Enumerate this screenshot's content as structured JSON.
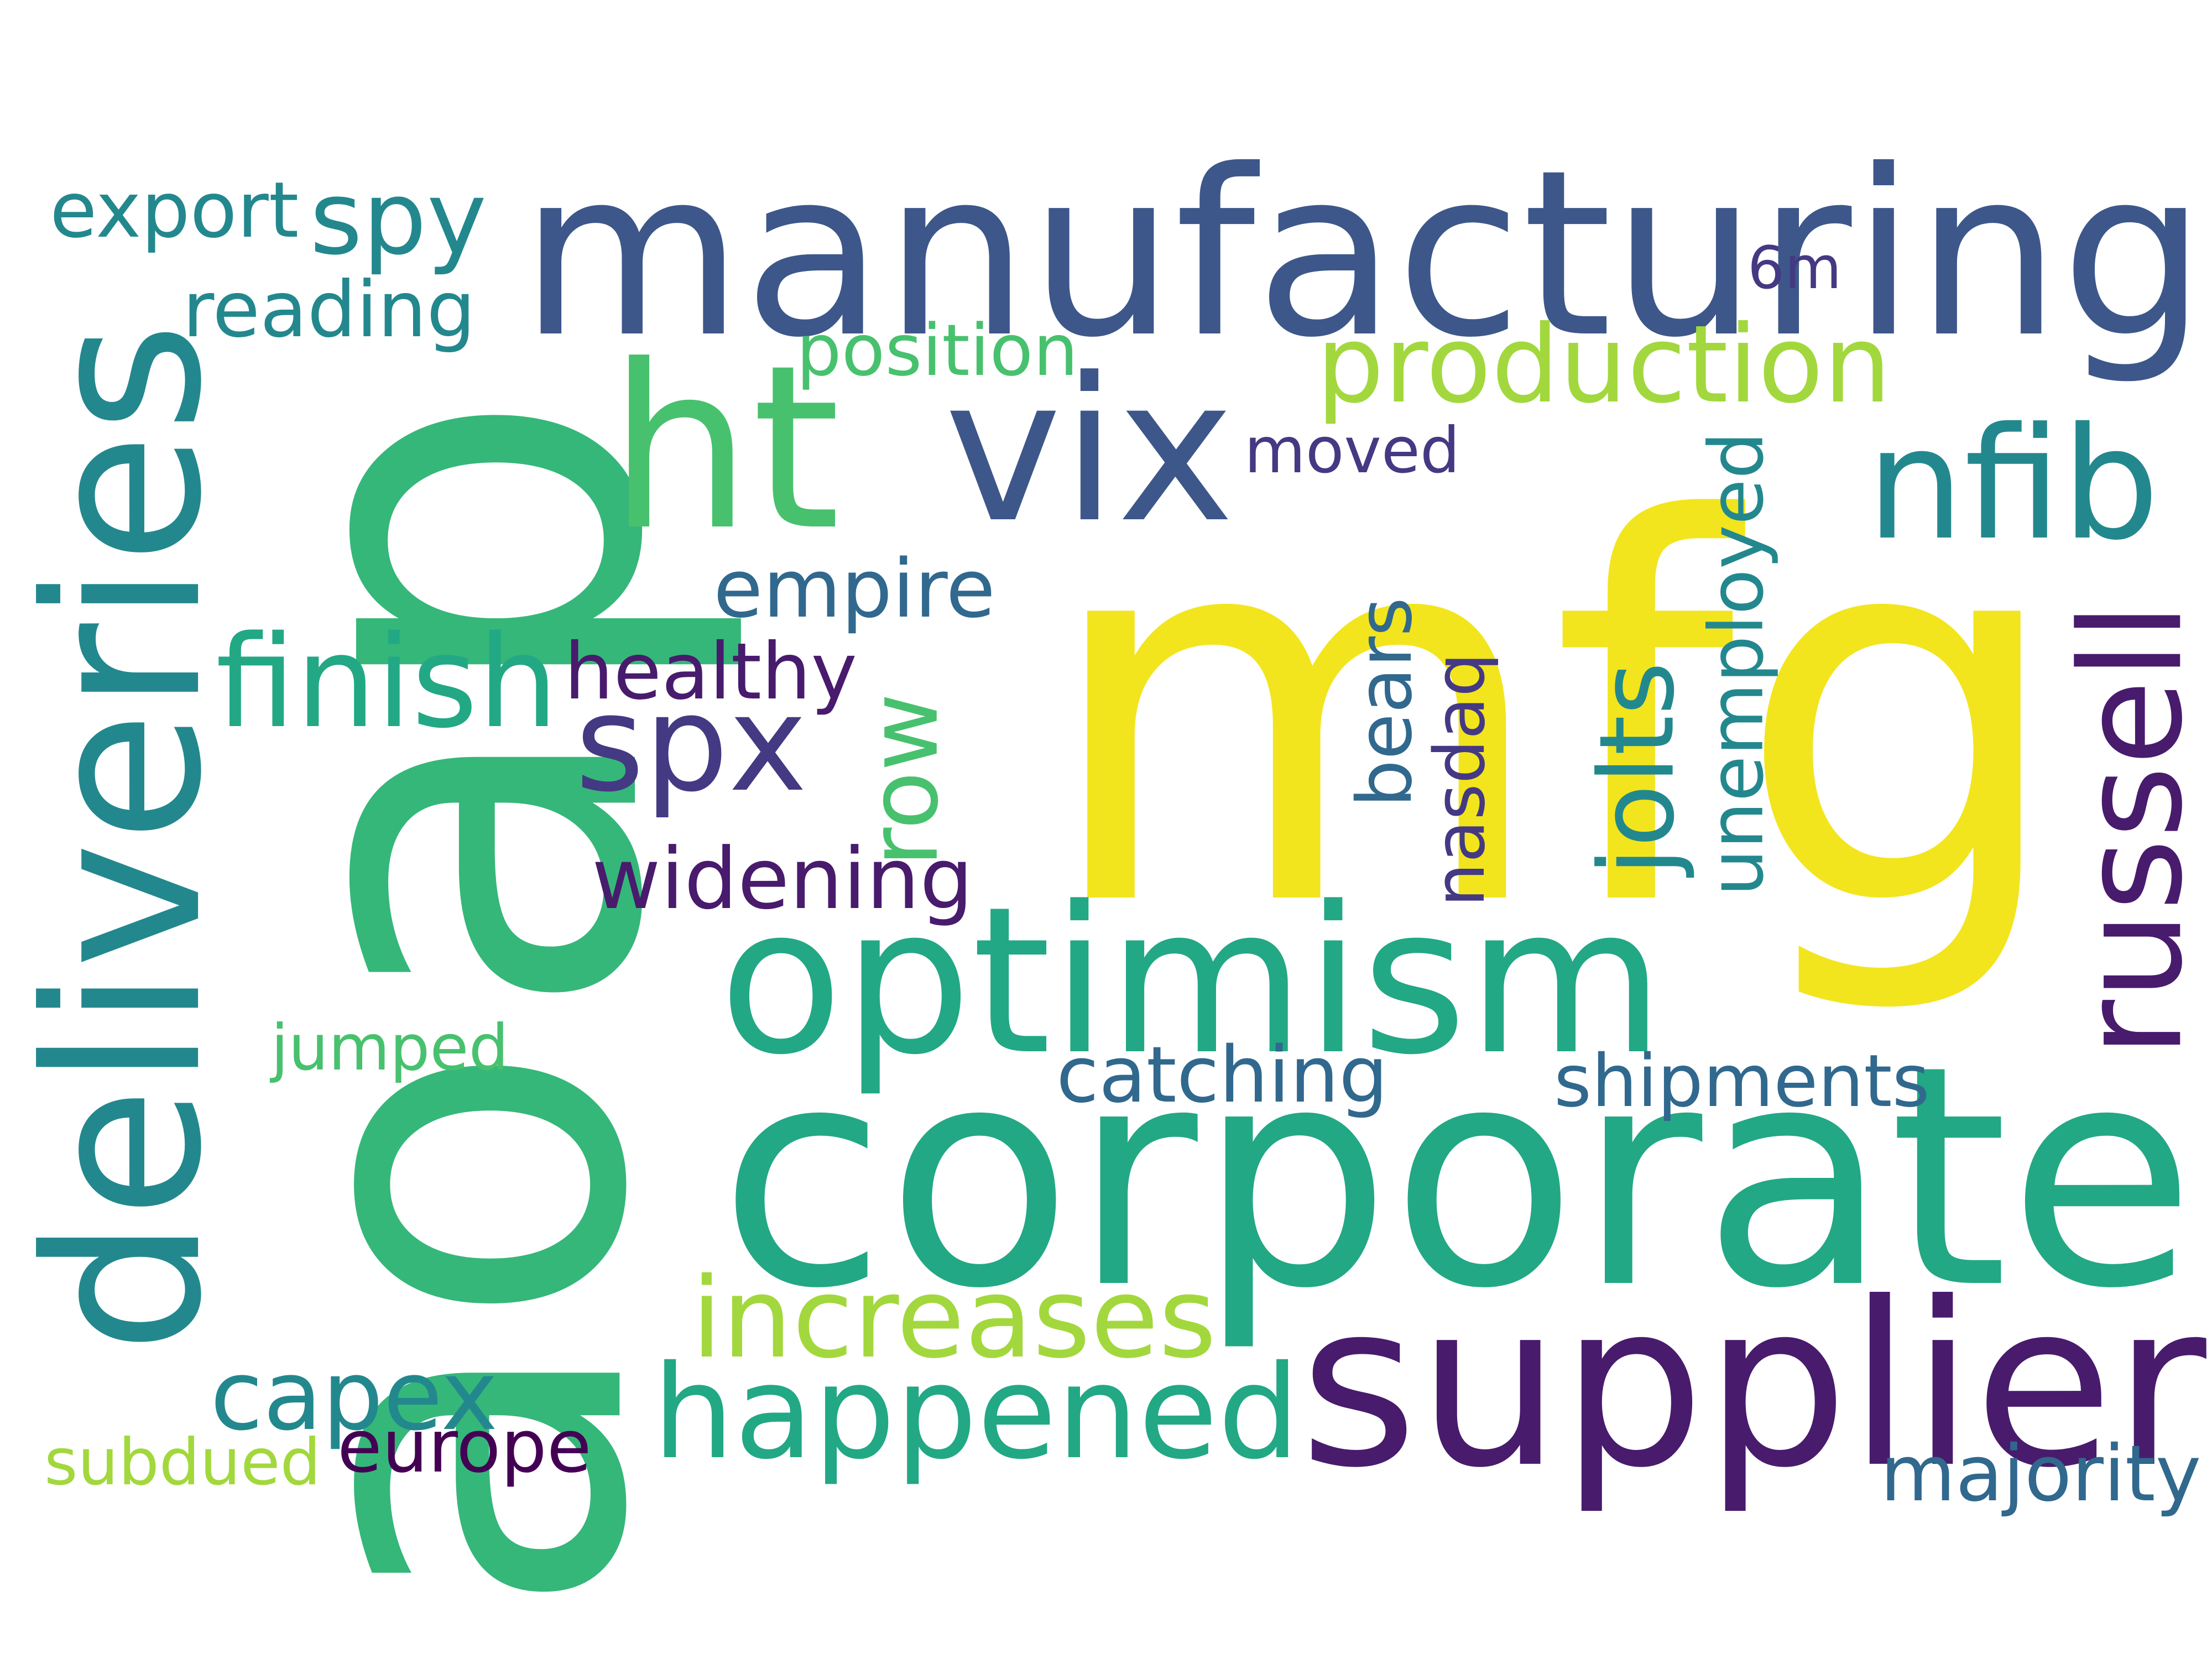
{
  "palette": {
    "yellow": "#f2e51d",
    "lime": "#a2d83d",
    "lightgreen": "#48c16e",
    "green": "#35b779",
    "teal": "#22a884",
    "cyan": "#23888e",
    "steel": "#31688e",
    "blue": "#3d578a",
    "indigo": "#443983",
    "purple": "#481b6d",
    "dark": "#440154"
  },
  "words": [
    {
      "id": "word-mfg",
      "text": "mfg",
      "color": "yellow"
    },
    {
      "id": "word-ap",
      "text": "ap",
      "color": "green"
    },
    {
      "id": "word-ao",
      "text": "ao",
      "color": "green"
    },
    {
      "id": "word-manufacturing",
      "text": "manufacturing",
      "color": "blue"
    },
    {
      "id": "word-corporate",
      "text": "corporate",
      "color": "teal"
    },
    {
      "id": "word-deliveries",
      "text": "deliveries",
      "color": "cyan"
    },
    {
      "id": "word-optimism",
      "text": "optimism",
      "color": "teal"
    },
    {
      "id": "word-supplier",
      "text": "supplier",
      "color": "purple"
    },
    {
      "id": "word-vix",
      "text": "vix",
      "color": "blue"
    },
    {
      "id": "word-ht",
      "text": "ht",
      "color": "lightgreen"
    },
    {
      "id": "word-happened",
      "text": "happened",
      "color": "teal"
    },
    {
      "id": "word-nfib",
      "text": "nfib",
      "color": "cyan"
    },
    {
      "id": "word-russell",
      "text": "russell",
      "color": "purple"
    },
    {
      "id": "word-production",
      "text": "production",
      "color": "lime"
    },
    {
      "id": "word-spx",
      "text": "spx",
      "color": "indigo"
    },
    {
      "id": "word-finish",
      "text": "finish",
      "color": "teal"
    },
    {
      "id": "word-spy",
      "text": "spy",
      "color": "cyan"
    },
    {
      "id": "word-increases",
      "text": "increases",
      "color": "lime"
    },
    {
      "id": "word-capex",
      "text": "capex",
      "color": "cyan"
    },
    {
      "id": "word-row",
      "text": "row",
      "color": "lightgreen"
    },
    {
      "id": "word-jolts",
      "text": "jolts",
      "color": "cyan"
    },
    {
      "id": "word-empire",
      "text": "empire",
      "color": "steel"
    },
    {
      "id": "word-widening",
      "text": "widening",
      "color": "purple"
    },
    {
      "id": "word-healthy",
      "text": "healthy",
      "color": "purple"
    },
    {
      "id": "word-catching",
      "text": "catching",
      "color": "steel"
    },
    {
      "id": "word-shipments",
      "text": "shipments",
      "color": "steel"
    },
    {
      "id": "word-unemployed",
      "text": "unemployed",
      "color": "cyan"
    },
    {
      "id": "word-reading",
      "text": "reading",
      "color": "cyan"
    },
    {
      "id": "word-export",
      "text": "export",
      "color": "cyan"
    },
    {
      "id": "word-moved",
      "text": "moved",
      "color": "indigo"
    },
    {
      "id": "word-jumped",
      "text": "jumped",
      "color": "lightgreen"
    },
    {
      "id": "word-subdued",
      "text": "subdued",
      "color": "lime"
    },
    {
      "id": "word-europe",
      "text": "europe",
      "color": "dark"
    },
    {
      "id": "word-majority",
      "text": "majority",
      "color": "steel"
    },
    {
      "id": "word-bears",
      "text": "bears",
      "color": "steel"
    },
    {
      "id": "word-nasdaq",
      "text": "nasdaq",
      "color": "indigo"
    },
    {
      "id": "word-position",
      "text": "position",
      "color": "lightgreen"
    },
    {
      "id": "word-6m",
      "text": "6m",
      "color": "indigo"
    }
  ]
}
